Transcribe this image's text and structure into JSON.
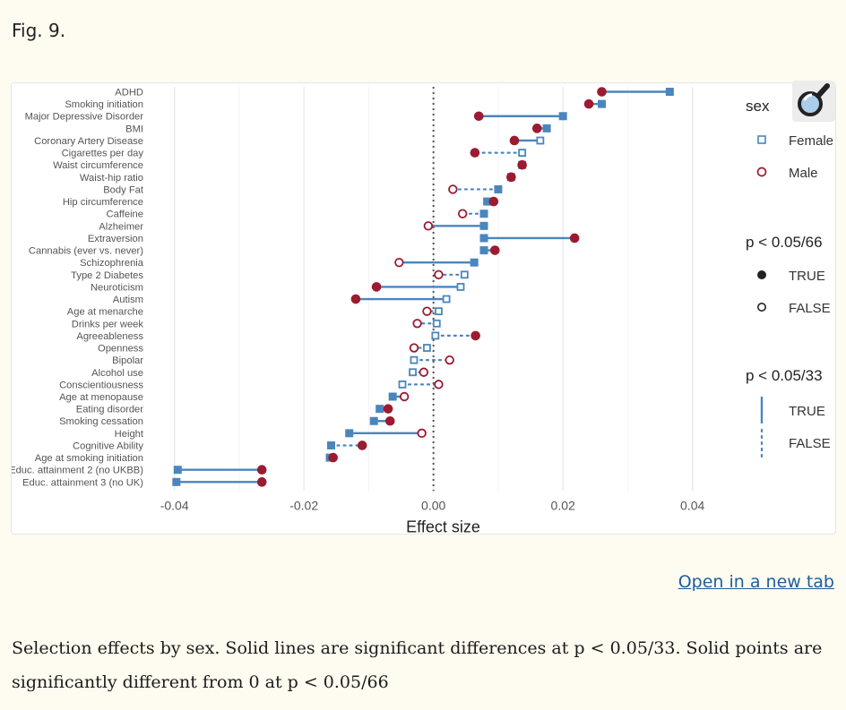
{
  "figure": {
    "label": "Fig. 9.",
    "open_link": "Open in a new tab",
    "caption": "Selection effects by sex. Solid lines are significant differences at p < 0.05/33. Solid points are significantly different from 0 at p < 0.05/66"
  },
  "colors": {
    "female": "#4a86bd",
    "male": "#9b1b30",
    "grid": "#e6e6e6",
    "zero_line": "#555555"
  },
  "chart_data": {
    "type": "scatter",
    "title": "",
    "xlabel": "Effect size",
    "ylabel": "",
    "xlim": [
      -0.043,
      0.046
    ],
    "xticks": [
      -0.04,
      -0.02,
      0.0,
      0.02,
      0.04
    ],
    "xtick_labels": [
      "-0.04",
      "-0.02",
      "0.00",
      "0.02",
      "0.04"
    ],
    "grid": true,
    "zero_reference_line": "dotted",
    "legend_placement": "right",
    "legend": {
      "sex_title": "sex",
      "sex_items": [
        "Female",
        "Male"
      ],
      "point_title": "p < 0.05/66",
      "point_items": [
        "TRUE",
        "FALSE"
      ],
      "line_title": "p < 0.05/33",
      "line_items": [
        "TRUE",
        "FALSE"
      ]
    },
    "traits": [
      {
        "name": "ADHD",
        "female": 0.0365,
        "male": 0.026,
        "female_sig": true,
        "male_sig": true,
        "diff_sig": true
      },
      {
        "name": "Smoking initiation",
        "female": 0.026,
        "male": 0.024,
        "female_sig": true,
        "male_sig": true,
        "diff_sig": true
      },
      {
        "name": "Major Depressive Disorder",
        "female": 0.02,
        "male": 0.007,
        "female_sig": true,
        "male_sig": true,
        "diff_sig": true
      },
      {
        "name": "BMI",
        "female": 0.0175,
        "male": 0.016,
        "female_sig": true,
        "male_sig": true,
        "diff_sig": true
      },
      {
        "name": "Coronary Artery Disease",
        "female": 0.0165,
        "male": 0.0125,
        "female_sig": false,
        "male_sig": true,
        "diff_sig": true
      },
      {
        "name": "Cigarettes per day",
        "female": 0.0137,
        "male": 0.0064,
        "female_sig": false,
        "male_sig": true,
        "diff_sig": false
      },
      {
        "name": "Waist circumference",
        "female": 0.0137,
        "male": 0.0137,
        "female_sig": true,
        "male_sig": true,
        "diff_sig": true
      },
      {
        "name": "Waist-hip ratio",
        "female": 0.012,
        "male": 0.012,
        "female_sig": true,
        "male_sig": true,
        "diff_sig": true
      },
      {
        "name": "Body Fat",
        "female": 0.01,
        "male": 0.003,
        "female_sig": true,
        "male_sig": false,
        "diff_sig": false
      },
      {
        "name": "Hip circumference",
        "female": 0.0083,
        "male": 0.0093,
        "female_sig": true,
        "male_sig": true,
        "diff_sig": true
      },
      {
        "name": "Caffeine",
        "female": 0.0078,
        "male": 0.0045,
        "female_sig": true,
        "male_sig": false,
        "diff_sig": false
      },
      {
        "name": "Alzheimer",
        "female": 0.0078,
        "male": -0.0008,
        "female_sig": true,
        "male_sig": false,
        "diff_sig": true
      },
      {
        "name": "Extraversion",
        "female": 0.0078,
        "male": 0.0218,
        "female_sig": true,
        "male_sig": true,
        "diff_sig": true
      },
      {
        "name": "Cannabis (ever vs. never)",
        "female": 0.0078,
        "male": 0.0095,
        "female_sig": true,
        "male_sig": true,
        "diff_sig": true
      },
      {
        "name": "Schizophrenia",
        "female": 0.0063,
        "male": -0.0053,
        "female_sig": true,
        "male_sig": false,
        "diff_sig": true
      },
      {
        "name": "Type 2 Diabetes",
        "female": 0.0048,
        "male": 0.0008,
        "female_sig": false,
        "male_sig": false,
        "diff_sig": false
      },
      {
        "name": "Neuroticism",
        "female": 0.0042,
        "male": -0.0088,
        "female_sig": false,
        "male_sig": true,
        "diff_sig": true
      },
      {
        "name": "Autism",
        "female": 0.002,
        "male": -0.012,
        "female_sig": false,
        "male_sig": true,
        "diff_sig": true
      },
      {
        "name": "Age at menarche",
        "female": 0.0008,
        "male": -0.001,
        "female_sig": false,
        "male_sig": false,
        "diff_sig": false
      },
      {
        "name": "Drinks per week",
        "female": 0.0005,
        "male": -0.0025,
        "female_sig": false,
        "male_sig": false,
        "diff_sig": false
      },
      {
        "name": "Agreeableness",
        "female": 0.0003,
        "male": 0.0065,
        "female_sig": false,
        "male_sig": true,
        "diff_sig": false
      },
      {
        "name": "Openness",
        "female": -0.001,
        "male": -0.003,
        "female_sig": false,
        "male_sig": false,
        "diff_sig": false
      },
      {
        "name": "Bipolar",
        "female": -0.003,
        "male": 0.0025,
        "female_sig": false,
        "male_sig": false,
        "diff_sig": false
      },
      {
        "name": "Alcohol use",
        "female": -0.0032,
        "male": -0.0015,
        "female_sig": false,
        "male_sig": false,
        "diff_sig": false
      },
      {
        "name": "Conscientiousness",
        "female": -0.0048,
        "male": 0.0008,
        "female_sig": false,
        "male_sig": false,
        "diff_sig": false
      },
      {
        "name": "Age at menopause",
        "female": -0.0063,
        "male": -0.0045,
        "female_sig": true,
        "male_sig": false,
        "diff_sig": true
      },
      {
        "name": "Eating disorder",
        "female": -0.0083,
        "male": -0.007,
        "female_sig": true,
        "male_sig": true,
        "diff_sig": true
      },
      {
        "name": "Smoking cessation",
        "female": -0.0092,
        "male": -0.0067,
        "female_sig": true,
        "male_sig": true,
        "diff_sig": true
      },
      {
        "name": "Height",
        "female": -0.013,
        "male": -0.0018,
        "female_sig": true,
        "male_sig": false,
        "diff_sig": true
      },
      {
        "name": "Cognitive Ability",
        "female": -0.0158,
        "male": -0.011,
        "female_sig": true,
        "male_sig": true,
        "diff_sig": false
      },
      {
        "name": "Age at smoking initiation",
        "female": -0.016,
        "male": -0.0155,
        "female_sig": true,
        "male_sig": true,
        "diff_sig": true
      },
      {
        "name": "Educ. attainment 2 (no UKBB)",
        "female": -0.0395,
        "male": -0.0265,
        "female_sig": true,
        "male_sig": true,
        "diff_sig": true
      },
      {
        "name": "Educ. attainment 3 (no UK)",
        "female": -0.0397,
        "male": -0.0265,
        "female_sig": true,
        "male_sig": true,
        "diff_sig": true
      }
    ]
  }
}
